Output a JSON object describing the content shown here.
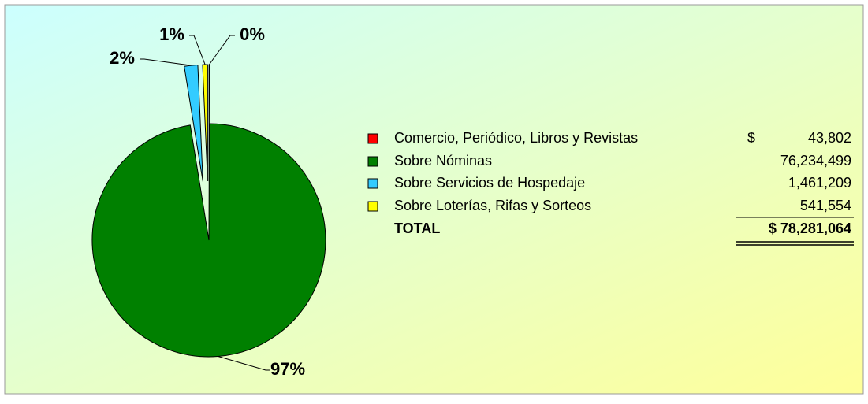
{
  "chart_data": {
    "type": "pie",
    "categories": [
      "Comercio, Periódico, Libros y Revistas",
      "Sobre Nóminas",
      "Sobre Servicios de Hospedaje",
      "Sobre Loterías, Rifas y Sorteos"
    ],
    "values": [
      0.056,
      97.386,
      1.867,
      0.692
    ],
    "value_labels": [
      "0%",
      "97%",
      "2%",
      "1%"
    ],
    "colors": [
      "#ff0000",
      "#008000",
      "#33ccff",
      "#ffff00"
    ],
    "exploded": [
      true,
      false,
      true,
      true
    ],
    "table": {
      "currency": "$",
      "amounts": [
        "43,802",
        "76,234,499",
        "1,461,209",
        "541,554"
      ],
      "total_label": "TOTAL",
      "total": "$ 78,281,064"
    }
  }
}
